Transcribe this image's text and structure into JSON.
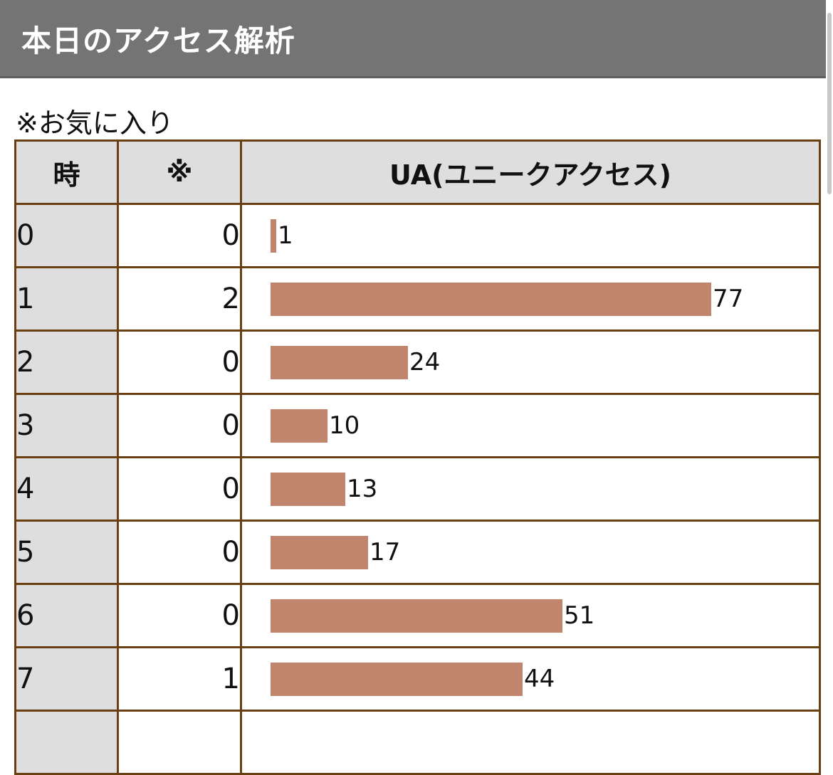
{
  "header": {
    "title": "本日のアクセス解析"
  },
  "note": "※お気に入り",
  "table": {
    "headers": [
      "時",
      "※",
      "UA(ユニークアクセス)"
    ]
  },
  "chart_data": {
    "type": "bar",
    "orientation": "horizontal",
    "title": "本日のアクセス解析",
    "columns": [
      "時",
      "※",
      "UA(ユニークアクセス)"
    ],
    "categories": [
      "0",
      "1",
      "2",
      "3",
      "4",
      "5",
      "6",
      "7"
    ],
    "favorites": [
      0,
      2,
      0,
      0,
      0,
      0,
      0,
      1
    ],
    "values": [
      1,
      77,
      24,
      10,
      13,
      17,
      51,
      44
    ],
    "bar_color": "#c1846c",
    "xlim": [
      0,
      77
    ]
  },
  "colors": {
    "header_bg": "#747474",
    "border": "#6a4013",
    "bar": "#c1846c",
    "header_cell_bg": "#dedede"
  }
}
